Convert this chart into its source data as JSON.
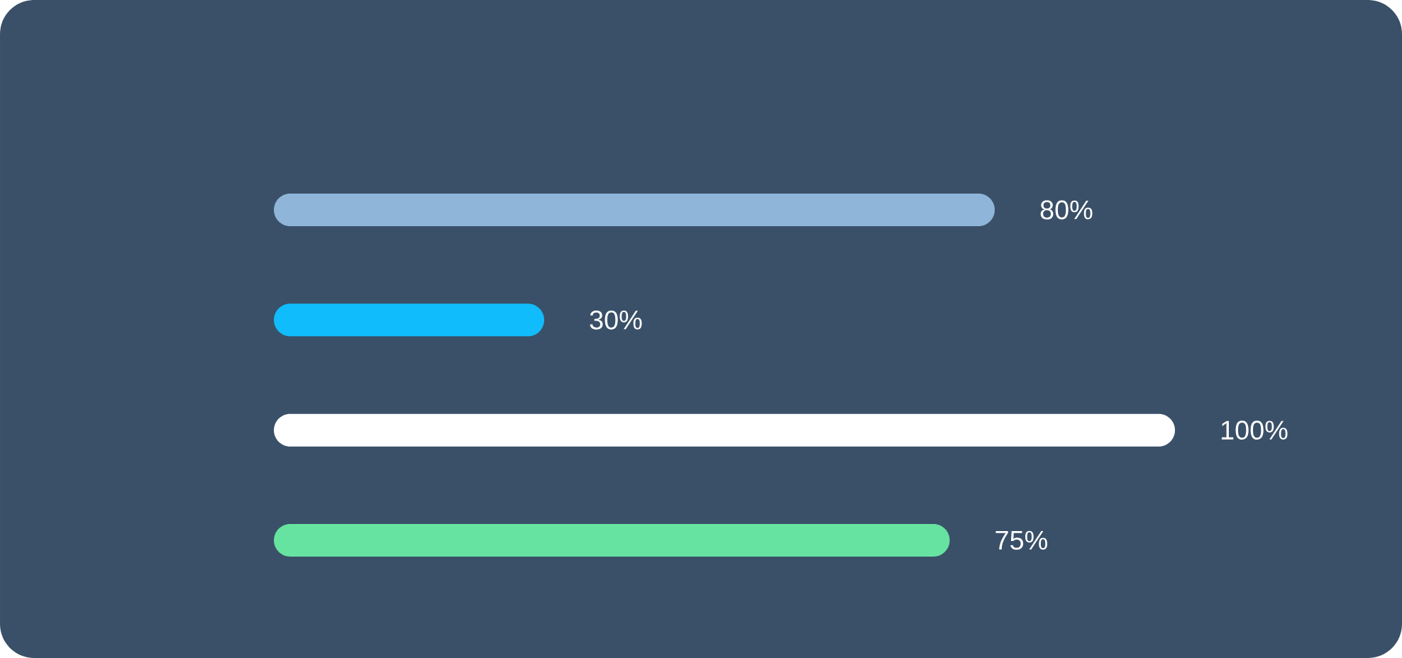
{
  "chart_data": {
    "type": "bar",
    "orientation": "horizontal",
    "categories": [
      null,
      null,
      null,
      null
    ],
    "values": [
      80,
      30,
      100,
      75
    ],
    "colors": [
      "#8fb5d8",
      "#10bcfb",
      "#ffffff",
      "#66e3a0"
    ],
    "value_labels": [
      "80%",
      "30%",
      "100%",
      "75%"
    ]
  }
}
